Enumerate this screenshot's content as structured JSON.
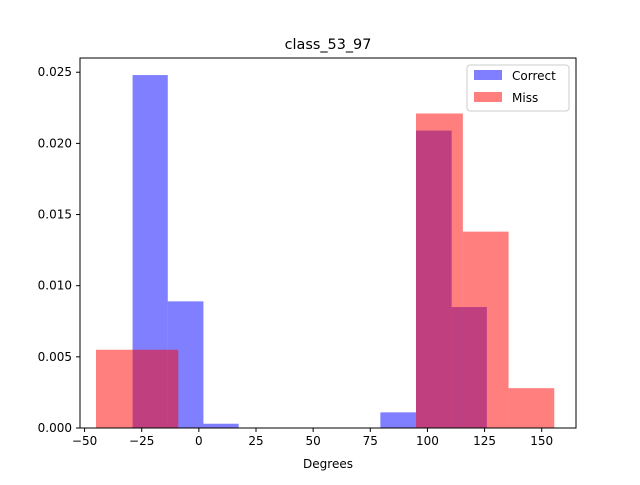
{
  "chart_data": {
    "type": "bar",
    "title": "class_53_97",
    "xlabel": "Degrees",
    "ylabel": "",
    "xlim": [
      -52,
      165
    ],
    "ylim": [
      0,
      0.026
    ],
    "xticks": [
      -50,
      -25,
      0,
      25,
      50,
      75,
      100,
      125,
      150
    ],
    "xtick_labels": [
      "−50",
      "−25",
      "0",
      "25",
      "50",
      "75",
      "100",
      "125",
      "150"
    ],
    "yticks": [
      0.0,
      0.005,
      0.01,
      0.015,
      0.02,
      0.025
    ],
    "ytick_labels": [
      "0.000",
      "0.005",
      "0.010",
      "0.015",
      "0.020",
      "0.025"
    ],
    "grid": false,
    "legend_position": "top-right",
    "series": [
      {
        "name": "Correct",
        "color": "#0000ff",
        "opacity": 0.5,
        "bins": [
          {
            "x0": -29.0,
            "x1": -13.6,
            "value": 0.0248
          },
          {
            "x0": -13.6,
            "x1": 2.0,
            "value": 0.0089
          },
          {
            "x0": 2.0,
            "x1": 17.4,
            "value": 0.0003
          },
          {
            "x0": 17.4,
            "x1": 33.0,
            "value": 0.0
          },
          {
            "x0": 33.0,
            "x1": 48.4,
            "value": 0.0
          },
          {
            "x0": 48.4,
            "x1": 64.0,
            "value": 0.0
          },
          {
            "x0": 64.0,
            "x1": 79.4,
            "value": 0.0
          },
          {
            "x0": 79.4,
            "x1": 95.0,
            "value": 0.0011
          },
          {
            "x0": 95.0,
            "x1": 110.6,
            "value": 0.0209
          },
          {
            "x0": 110.6,
            "x1": 126.0,
            "value": 0.0085
          }
        ]
      },
      {
        "name": "Miss",
        "color": "#ff0000",
        "opacity": 0.5,
        "bins": [
          {
            "x0": -45.0,
            "x1": -29.0,
            "value": 0.0055
          },
          {
            "x0": -29.0,
            "x1": -9.0,
            "value": 0.0055
          },
          {
            "x0": -9.0,
            "x1": 15.0,
            "value": 0.0
          },
          {
            "x0": 15.0,
            "x1": 35.0,
            "value": 0.0
          },
          {
            "x0": 35.0,
            "x1": 55.0,
            "value": 0.0
          },
          {
            "x0": 55.0,
            "x1": 75.0,
            "value": 0.0
          },
          {
            "x0": 75.0,
            "x1": 95.0,
            "value": 0.0
          },
          {
            "x0": 95.0,
            "x1": 115.5,
            "value": 0.0221
          },
          {
            "x0": 115.5,
            "x1": 135.5,
            "value": 0.0138
          },
          {
            "x0": 135.5,
            "x1": 155.5,
            "value": 0.0028
          }
        ]
      }
    ]
  }
}
